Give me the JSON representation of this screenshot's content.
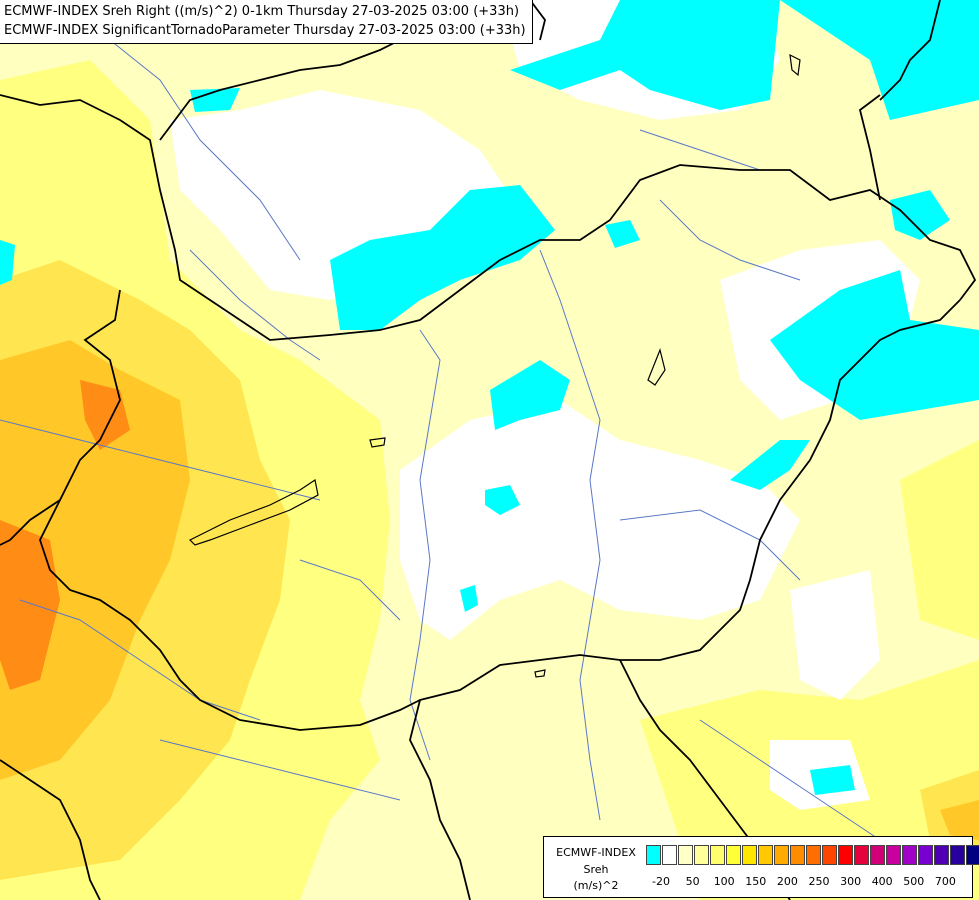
{
  "title": {
    "line1": "ECMWF-INDEX Sreh Right ((m/s)^2) 0-1km Thursday 27-03-2025 03:00 (+33h)",
    "line2": "ECMWF-INDEX SignificantTornadoParameter Thursday 27-03-2025 03:00 (+33h)"
  },
  "legend": {
    "model": "ECMWF-INDEX",
    "variable": "Sreh",
    "unit": "(m/s)^2",
    "colors": [
      "#00ffff",
      "#ffffff",
      "#ffffc8",
      "#ffff9b",
      "#ffff6e",
      "#ffff37",
      "#ffe600",
      "#ffc800",
      "#ffaa00",
      "#ff8c00",
      "#ff6e00",
      "#ff4600",
      "#ff0000",
      "#e6003c",
      "#d20078",
      "#c800a0",
      "#a000c8",
      "#7800d2",
      "#5000b4",
      "#2800a0",
      "#000080"
    ],
    "ticks": [
      "-20",
      "50",
      "100",
      "150",
      "200",
      "250",
      "300",
      "400",
      "500",
      "700"
    ]
  },
  "map": {
    "colors": {
      "cyan": "#00ffff",
      "white": "#ffffff",
      "pale": "#ffffc0",
      "yellow": "#ffff80",
      "gold": "#ffe650",
      "amber": "#ffc828",
      "orange": "#ff8c14",
      "border": "#000000",
      "river": "#5a78c8"
    }
  }
}
